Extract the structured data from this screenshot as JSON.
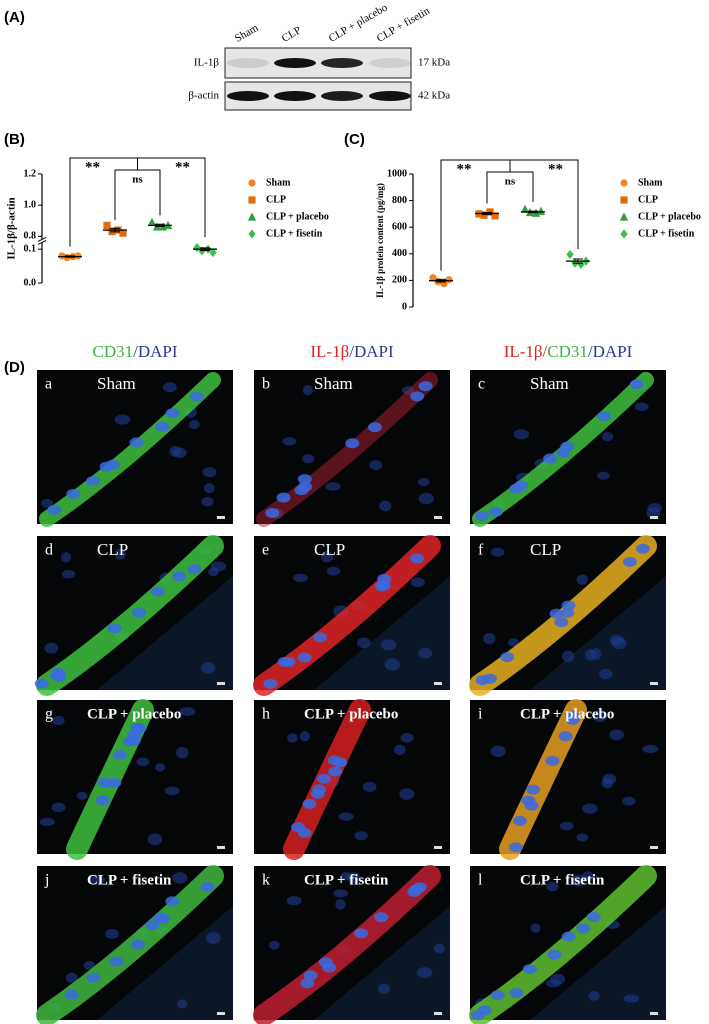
{
  "blot": {
    "label": "(A)",
    "lanes": [
      "Sham",
      "CLP",
      "CLP + placebo",
      "CLP + fisetin"
    ],
    "rows": [
      {
        "protein": "IL-1β",
        "size": "17 kDa"
      },
      {
        "protein": "β-actin",
        "size": "42 kDa"
      }
    ]
  },
  "chart_data": [
    {
      "type": "dot",
      "label": "(B)",
      "y_label": "IL-1β/β-actin",
      "y_segments": [
        {
          "ylim": [
            0,
            0.12
          ],
          "yticks": [
            {
              "value": 0,
              "label": "0.0"
            },
            0.1
          ]
        },
        {
          "ylim": [
            0.78,
            1.2
          ],
          "yticks": [
            0.8,
            {
              "value": 1,
              "label": "1.0"
            },
            1.2
          ]
        }
      ],
      "annotations": [
        "**",
        "ns",
        "**"
      ],
      "series": [
        {
          "name": "Sham",
          "color": "#f58220",
          "marker": "circle",
          "values": [
            0.08,
            0.075,
            0.078,
            0.08
          ],
          "mean": 0.078,
          "sem": 0.002
        },
        {
          "name": "CLP",
          "color": "#e46c0a",
          "marker": "square",
          "values": [
            0.87,
            0.83,
            0.84,
            0.82
          ],
          "mean": 0.84,
          "sem": 0.012
        },
        {
          "name": "CLP + placebo",
          "color": "#2e9e3e",
          "marker": "triangle",
          "values": [
            0.89,
            0.86,
            0.86,
            0.87
          ],
          "mean": 0.87,
          "sem": 0.007
        },
        {
          "name": "CLP + fisetin",
          "color": "#3dbf4e",
          "marker": "diamond",
          "values": [
            0.105,
            0.095,
            0.1,
            0.09
          ],
          "mean": 0.1,
          "sem": 0.004
        }
      ]
    },
    {
      "type": "dot",
      "label": "(C)",
      "y_label": "IL-1β protein content (pg/mg)",
      "ylim": [
        0,
        1000
      ],
      "yticks": [
        0,
        200,
        400,
        600,
        800,
        1000
      ],
      "annotations": [
        "**",
        "ns",
        "**"
      ],
      "series": [
        {
          "name": "Sham",
          "color": "#f58220",
          "marker": "circle",
          "values": [
            220,
            190,
            175,
            205
          ],
          "mean": 198,
          "sem": 10
        },
        {
          "name": "CLP",
          "color": "#e46c0a",
          "marker": "square",
          "values": [
            700,
            690,
            715,
            685
          ],
          "mean": 703,
          "sem": 8
        },
        {
          "name": "CLP + placebo",
          "color": "#2e9e3e",
          "marker": "triangle",
          "values": [
            735,
            710,
            705,
            720
          ],
          "mean": 715,
          "sem": 6
        },
        {
          "name": "CLP + fisetin",
          "color": "#3dbf4e",
          "marker": "diamond",
          "values": [
            395,
            330,
            320,
            345
          ],
          "mean": 345,
          "sem": 16
        }
      ]
    }
  ],
  "micrographs": {
    "label": "(D)",
    "headers": [
      [
        {
          "text": "CD31",
          "color": "#3cb43c"
        },
        {
          "text": "/DAPI",
          "color": "#2b3a96"
        }
      ],
      [
        {
          "text": "IL-1β",
          "color": "#e02020"
        },
        {
          "text": "/DAPI",
          "color": "#2b3a96"
        }
      ],
      [
        {
          "text": "IL-1β/",
          "color": "#e02020"
        },
        {
          "text": "CD31",
          "color": "#3cb43c"
        },
        {
          "text": "/DAPI",
          "color": "#2b3a96"
        }
      ]
    ],
    "panels": [
      {
        "letter": "a",
        "group": "Sham"
      },
      {
        "letter": "b",
        "group": "Sham"
      },
      {
        "letter": "c",
        "group": "Sham"
      },
      {
        "letter": "d",
        "group": "CLP"
      },
      {
        "letter": "e",
        "group": "CLP"
      },
      {
        "letter": "f",
        "group": "CLP"
      },
      {
        "letter": "g",
        "group": "CLP + placebo"
      },
      {
        "letter": "h",
        "group": "CLP + placebo"
      },
      {
        "letter": "i",
        "group": "CLP + placebo"
      },
      {
        "letter": "j",
        "group": "CLP + fisetin"
      },
      {
        "letter": "k",
        "group": "CLP + fisetin"
      },
      {
        "letter": "l",
        "group": "CLP + fisetin"
      }
    ]
  }
}
